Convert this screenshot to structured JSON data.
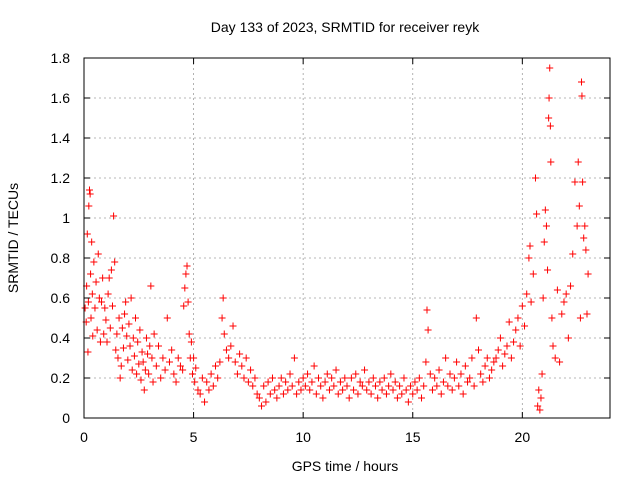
{
  "chart_data": {
    "type": "scatter",
    "title": "Day 133 of 2023, SRMTID for receiver reyk",
    "xlabel": "GPS time / hours",
    "ylabel": "SRMTID / TECUs",
    "xlim": [
      0,
      24
    ],
    "ylim": [
      0,
      1.8
    ],
    "xticks": [
      0,
      5,
      10,
      15,
      20
    ],
    "xtick_labels": [
      "0",
      "5",
      "10",
      "15",
      "20"
    ],
    "yticks": [
      0,
      0.2,
      0.4,
      0.6,
      0.8,
      1.0,
      1.2,
      1.4,
      1.6,
      1.8
    ],
    "ytick_labels": [
      "0",
      "0.2",
      "0.4",
      "0.6",
      "0.8",
      "1",
      "1.2",
      "1.4",
      "1.6",
      "1.8"
    ],
    "grid": true,
    "marker": "+",
    "color": "#ff0000",
    "series": [
      {
        "name": "SRMTID",
        "points": [
          [
            0.05,
            0.55
          ],
          [
            0.1,
            0.48
          ],
          [
            0.12,
            0.66
          ],
          [
            0.15,
            0.92
          ],
          [
            0.18,
            0.33
          ],
          [
            0.2,
            0.58
          ],
          [
            0.22,
            1.06
          ],
          [
            0.25,
            1.14
          ],
          [
            0.28,
            1.12
          ],
          [
            0.3,
            0.72
          ],
          [
            0.32,
            0.5
          ],
          [
            0.35,
            0.88
          ],
          [
            0.38,
            0.62
          ],
          [
            0.4,
            0.41
          ],
          [
            0.45,
            0.78
          ],
          [
            0.5,
            0.55
          ],
          [
            0.55,
            0.68
          ],
          [
            0.6,
            0.44
          ],
          [
            0.65,
            0.82
          ],
          [
            0.7,
            0.6
          ],
          [
            0.75,
            0.38
          ],
          [
            0.8,
            0.58
          ],
          [
            0.85,
            0.7
          ],
          [
            0.9,
            0.42
          ],
          [
            0.95,
            0.55
          ],
          [
            1.0,
            0.49
          ],
          [
            1.05,
            0.38
          ],
          [
            1.1,
            0.62
          ],
          [
            1.15,
            0.7
          ],
          [
            1.2,
            0.45
          ],
          [
            1.25,
            0.74
          ],
          [
            1.3,
            0.56
          ],
          [
            1.35,
            1.01
          ],
          [
            1.4,
            0.78
          ],
          [
            1.45,
            0.34
          ],
          [
            1.5,
            0.42
          ],
          [
            1.55,
            0.3
          ],
          [
            1.6,
            0.5
          ],
          [
            1.65,
            0.2
          ],
          [
            1.7,
            0.26
          ],
          [
            1.75,
            0.45
          ],
          [
            1.8,
            0.35
          ],
          [
            1.85,
            0.52
          ],
          [
            1.9,
            0.58
          ],
          [
            1.95,
            0.41
          ],
          [
            2.0,
            0.29
          ],
          [
            2.05,
            0.47
          ],
          [
            2.1,
            0.36
          ],
          [
            2.15,
            0.6
          ],
          [
            2.2,
            0.24
          ],
          [
            2.25,
            0.4
          ],
          [
            2.3,
            0.31
          ],
          [
            2.35,
            0.5
          ],
          [
            2.4,
            0.22
          ],
          [
            2.45,
            0.38
          ],
          [
            2.5,
            0.27
          ],
          [
            2.55,
            0.44
          ],
          [
            2.6,
            0.19
          ],
          [
            2.65,
            0.33
          ],
          [
            2.7,
            0.28
          ],
          [
            2.75,
            0.14
          ],
          [
            2.8,
            0.24
          ],
          [
            2.85,
            0.4
          ],
          [
            2.9,
            0.32
          ],
          [
            2.95,
            0.22
          ],
          [
            3.0,
            0.36
          ],
          [
            3.05,
            0.66
          ],
          [
            3.1,
            0.3
          ],
          [
            3.15,
            0.18
          ],
          [
            3.2,
            0.42
          ],
          [
            3.3,
            0.26
          ],
          [
            3.4,
            0.36
          ],
          [
            3.5,
            0.2
          ],
          [
            3.6,
            0.3
          ],
          [
            3.7,
            0.24
          ],
          [
            3.8,
            0.5
          ],
          [
            3.9,
            0.28
          ],
          [
            4.0,
            0.34
          ],
          [
            4.1,
            0.22
          ],
          [
            4.2,
            0.18
          ],
          [
            4.3,
            0.3
          ],
          [
            4.4,
            0.26
          ],
          [
            4.5,
            0.24
          ],
          [
            4.55,
            0.56
          ],
          [
            4.6,
            0.65
          ],
          [
            4.65,
            0.72
          ],
          [
            4.7,
            0.76
          ],
          [
            4.75,
            0.58
          ],
          [
            4.8,
            0.42
          ],
          [
            4.85,
            0.3
          ],
          [
            4.9,
            0.38
          ],
          [
            4.95,
            0.22
          ],
          [
            5.0,
            0.3
          ],
          [
            5.05,
            0.18
          ],
          [
            5.1,
            0.25
          ],
          [
            5.2,
            0.14
          ],
          [
            5.3,
            0.12
          ],
          [
            5.4,
            0.2
          ],
          [
            5.5,
            0.08
          ],
          [
            5.6,
            0.18
          ],
          [
            5.7,
            0.14
          ],
          [
            5.8,
            0.22
          ],
          [
            5.9,
            0.16
          ],
          [
            6.0,
            0.26
          ],
          [
            6.1,
            0.2
          ],
          [
            6.2,
            0.28
          ],
          [
            6.3,
            0.5
          ],
          [
            6.35,
            0.6
          ],
          [
            6.4,
            0.42
          ],
          [
            6.5,
            0.34
          ],
          [
            6.6,
            0.3
          ],
          [
            6.7,
            0.36
          ],
          [
            6.8,
            0.46
          ],
          [
            6.9,
            0.28
          ],
          [
            7.0,
            0.22
          ],
          [
            7.1,
            0.32
          ],
          [
            7.2,
            0.26
          ],
          [
            7.3,
            0.2
          ],
          [
            7.4,
            0.3
          ],
          [
            7.5,
            0.18
          ],
          [
            7.6,
            0.24
          ],
          [
            7.7,
            0.16
          ],
          [
            7.8,
            0.2
          ],
          [
            7.9,
            0.12
          ],
          [
            8.0,
            0.1
          ],
          [
            8.1,
            0.06
          ],
          [
            8.2,
            0.16
          ],
          [
            8.3,
            0.08
          ],
          [
            8.4,
            0.18
          ],
          [
            8.5,
            0.12
          ],
          [
            8.6,
            0.2
          ],
          [
            8.7,
            0.14
          ],
          [
            8.8,
            0.1
          ],
          [
            8.9,
            0.16
          ],
          [
            9.0,
            0.2
          ],
          [
            9.1,
            0.12
          ],
          [
            9.2,
            0.18
          ],
          [
            9.3,
            0.14
          ],
          [
            9.4,
            0.22
          ],
          [
            9.5,
            0.16
          ],
          [
            9.6,
            0.3
          ],
          [
            9.7,
            0.12
          ],
          [
            9.8,
            0.18
          ],
          [
            9.9,
            0.14
          ],
          [
            10.0,
            0.2
          ],
          [
            10.1,
            0.16
          ],
          [
            10.2,
            0.22
          ],
          [
            10.3,
            0.14
          ],
          [
            10.4,
            0.18
          ],
          [
            10.5,
            0.26
          ],
          [
            10.6,
            0.12
          ],
          [
            10.7,
            0.2
          ],
          [
            10.8,
            0.16
          ],
          [
            10.9,
            0.1
          ],
          [
            11.0,
            0.18
          ],
          [
            11.1,
            0.22
          ],
          [
            11.2,
            0.14
          ],
          [
            11.3,
            0.2
          ],
          [
            11.4,
            0.16
          ],
          [
            11.5,
            0.24
          ],
          [
            11.6,
            0.12
          ],
          [
            11.7,
            0.18
          ],
          [
            11.8,
            0.14
          ],
          [
            11.9,
            0.2
          ],
          [
            12.0,
            0.16
          ],
          [
            12.1,
            0.1
          ],
          [
            12.2,
            0.2
          ],
          [
            12.3,
            0.14
          ],
          [
            12.4,
            0.22
          ],
          [
            12.5,
            0.12
          ],
          [
            12.6,
            0.18
          ],
          [
            12.7,
            0.16
          ],
          [
            12.8,
            0.24
          ],
          [
            12.9,
            0.14
          ],
          [
            13.0,
            0.18
          ],
          [
            13.1,
            0.12
          ],
          [
            13.2,
            0.2
          ],
          [
            13.3,
            0.16
          ],
          [
            13.4,
            0.1
          ],
          [
            13.5,
            0.18
          ],
          [
            13.6,
            0.14
          ],
          [
            13.7,
            0.2
          ],
          [
            13.8,
            0.12
          ],
          [
            13.9,
            0.16
          ],
          [
            14.0,
            0.22
          ],
          [
            14.1,
            0.14
          ],
          [
            14.2,
            0.18
          ],
          [
            14.3,
            0.1
          ],
          [
            14.4,
            0.16
          ],
          [
            14.5,
            0.12
          ],
          [
            14.6,
            0.2
          ],
          [
            14.7,
            0.14
          ],
          [
            14.8,
            0.08
          ],
          [
            14.9,
            0.16
          ],
          [
            15.0,
            0.12
          ],
          [
            15.1,
            0.18
          ],
          [
            15.2,
            0.14
          ],
          [
            15.3,
            0.2
          ],
          [
            15.4,
            0.1
          ],
          [
            15.5,
            0.16
          ],
          [
            15.6,
            0.28
          ],
          [
            15.65,
            0.54
          ],
          [
            15.7,
            0.44
          ],
          [
            15.8,
            0.22
          ],
          [
            15.9,
            0.14
          ],
          [
            16.0,
            0.2
          ],
          [
            16.1,
            0.16
          ],
          [
            16.2,
            0.24
          ],
          [
            16.3,
            0.12
          ],
          [
            16.4,
            0.18
          ],
          [
            16.5,
            0.3
          ],
          [
            16.6,
            0.16
          ],
          [
            16.7,
            0.22
          ],
          [
            16.8,
            0.14
          ],
          [
            16.9,
            0.2
          ],
          [
            17.0,
            0.28
          ],
          [
            17.1,
            0.16
          ],
          [
            17.2,
            0.22
          ],
          [
            17.3,
            0.12
          ],
          [
            17.4,
            0.26
          ],
          [
            17.5,
            0.18
          ],
          [
            17.6,
            0.2
          ],
          [
            17.7,
            0.3
          ],
          [
            17.8,
            0.16
          ],
          [
            17.9,
            0.5
          ],
          [
            18.0,
            0.34
          ],
          [
            18.1,
            0.22
          ],
          [
            18.2,
            0.18
          ],
          [
            18.3,
            0.26
          ],
          [
            18.4,
            0.3
          ],
          [
            18.5,
            0.2
          ],
          [
            18.6,
            0.24
          ],
          [
            18.7,
            0.28
          ],
          [
            18.8,
            0.3
          ],
          [
            18.9,
            0.34
          ],
          [
            19.0,
            0.4
          ],
          [
            19.1,
            0.26
          ],
          [
            19.2,
            0.32
          ],
          [
            19.3,
            0.36
          ],
          [
            19.4,
            0.48
          ],
          [
            19.5,
            0.3
          ],
          [
            19.6,
            0.38
          ],
          [
            19.7,
            0.44
          ],
          [
            19.8,
            0.5
          ],
          [
            19.9,
            0.36
          ],
          [
            20.0,
            0.56
          ],
          [
            20.1,
            0.46
          ],
          [
            20.2,
            0.62
          ],
          [
            20.3,
            0.8
          ],
          [
            20.35,
            0.86
          ],
          [
            20.4,
            0.58
          ],
          [
            20.5,
            0.72
          ],
          [
            20.6,
            1.2
          ],
          [
            20.65,
            1.02
          ],
          [
            20.7,
            0.06
          ],
          [
            20.75,
            0.14
          ],
          [
            20.8,
            0.04
          ],
          [
            20.85,
            0.1
          ],
          [
            20.9,
            0.22
          ],
          [
            20.95,
            0.6
          ],
          [
            21.0,
            0.88
          ],
          [
            21.05,
            1.04
          ],
          [
            21.1,
            0.96
          ],
          [
            21.15,
            0.74
          ],
          [
            21.2,
            1.5
          ],
          [
            21.22,
            1.6
          ],
          [
            21.25,
            1.75
          ],
          [
            21.28,
            1.46
          ],
          [
            21.3,
            1.28
          ],
          [
            21.35,
            0.5
          ],
          [
            21.4,
            0.36
          ],
          [
            21.5,
            0.3
          ],
          [
            21.6,
            0.64
          ],
          [
            21.7,
            0.28
          ],
          [
            21.8,
            0.52
          ],
          [
            21.9,
            0.58
          ],
          [
            22.0,
            0.62
          ],
          [
            22.1,
            0.4
          ],
          [
            22.2,
            0.66
          ],
          [
            22.3,
            0.82
          ],
          [
            22.4,
            1.18
          ],
          [
            22.5,
            0.96
          ],
          [
            22.55,
            1.28
          ],
          [
            22.6,
            1.06
          ],
          [
            22.65,
            0.5
          ],
          [
            22.7,
            1.68
          ],
          [
            22.72,
            1.61
          ],
          [
            22.75,
            1.18
          ],
          [
            22.8,
            0.9
          ],
          [
            22.85,
            0.96
          ],
          [
            22.9,
            0.84
          ],
          [
            22.95,
            0.52
          ],
          [
            23.0,
            0.72
          ]
        ]
      }
    ]
  }
}
